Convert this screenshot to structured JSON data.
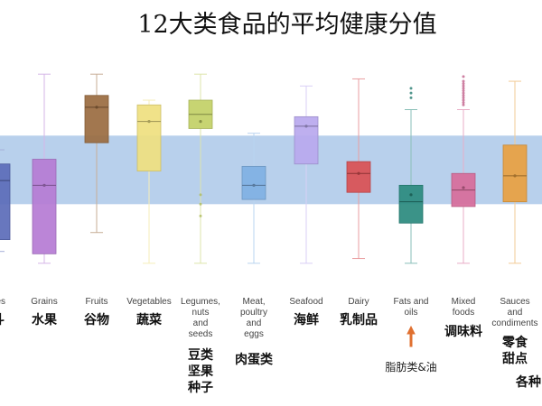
{
  "chart_data": {
    "type": "box",
    "title": "12大类食品的平均健康分值",
    "xlabel": "",
    "ylabel": "",
    "ylim": [
      0,
      100
    ],
    "grid": false,
    "band": {
      "low": 35,
      "high": 64,
      "color": "#b8d0ec"
    },
    "categories": [
      {
        "en": "Beverages",
        "en_visible": "ges",
        "zh": "饮料",
        "zh_visible": "斗",
        "color": "#5b6bb8",
        "min": 15,
        "q1": 20,
        "median": 45,
        "q3": 52,
        "max": 58,
        "mean": 45,
        "outliers": []
      },
      {
        "en": "Grains",
        "zh": "水果",
        "color": "#b57bd4",
        "min": 10,
        "q1": 14,
        "median": 43,
        "q3": 54,
        "max": 90,
        "mean": 43,
        "outliers": []
      },
      {
        "en": "Fruits",
        "zh": "谷物",
        "color": "#9a6b40",
        "min": 23,
        "q1": 61,
        "median": 76,
        "q3": 81,
        "max": 90,
        "mean": 76,
        "outliers": []
      },
      {
        "en": "Vegetables",
        "zh": "蔬菜",
        "color": "#efe07f",
        "min": 10,
        "q1": 49,
        "median": 70,
        "q3": 77,
        "max": 79,
        "mean": 70,
        "outliers": []
      },
      {
        "en": "Legumes, nuts and seeds",
        "en_lines": [
          "Legumes,",
          "nuts",
          "and",
          "seeds"
        ],
        "zh": "豆类坚果种子",
        "zh_lines": [
          "豆类",
          "坚果",
          "种子"
        ],
        "color": "#c2d066",
        "min": 10,
        "q1": 67,
        "median": 73,
        "q3": 79,
        "max": 90,
        "mean": 70,
        "outliers": [
          30,
          35,
          39
        ]
      },
      {
        "en": "Meat, poultry and eggs",
        "en_lines": [
          "Meat,",
          "poultry",
          "and",
          "eggs"
        ],
        "zh": "肉蛋类",
        "color": "#7fb0e3",
        "min": 10,
        "q1": 37,
        "median": 43,
        "q3": 51,
        "max": 65,
        "mean": 43,
        "outliers": []
      },
      {
        "en": "Seafood",
        "zh": "海鲜",
        "color": "#b8a8ee",
        "min": 10,
        "q1": 52,
        "median": 68,
        "q3": 72,
        "max": 85,
        "mean": 68,
        "outliers": []
      },
      {
        "en": "Dairy",
        "zh": "乳制品",
        "color": "#d94f52",
        "min": 12,
        "q1": 40,
        "median": 48,
        "q3": 53,
        "max": 88,
        "mean": 48,
        "outliers": []
      },
      {
        "en": "Fats and oils",
        "en_lines": [
          "Fats and",
          "oils"
        ],
        "zh": "脂肪类&油",
        "color": "#2a8a7e",
        "min": 10,
        "q1": 27,
        "median": 36,
        "q3": 43,
        "max": 75,
        "mean": 39,
        "outliers": [
          80,
          82,
          84
        ]
      },
      {
        "en": "Mixed foods",
        "en_lines": [
          "Mixed",
          "foods"
        ],
        "zh": "调味料",
        "color": "#d76b9a",
        "min": 10,
        "q1": 34,
        "median": 41,
        "q3": 48,
        "max": 75,
        "mean": 42,
        "outliers": [
          77,
          78,
          79,
          80,
          81,
          82,
          83,
          84,
          85,
          86,
          87,
          89
        ]
      },
      {
        "en": "Sauces and condiments",
        "en_lines": [
          "Sauces",
          "and",
          "condiments"
        ],
        "zh": "零食甜点",
        "zh_lines": [
          "零食",
          "甜点"
        ],
        "color": "#e8a040",
        "min": 10,
        "q1": 36,
        "median": 47,
        "q3": 60,
        "max": 87,
        "mean": 47,
        "outliers": []
      }
    ],
    "annotations": [
      {
        "text": "各种",
        "note": "partially cut off at right edge"
      }
    ]
  }
}
